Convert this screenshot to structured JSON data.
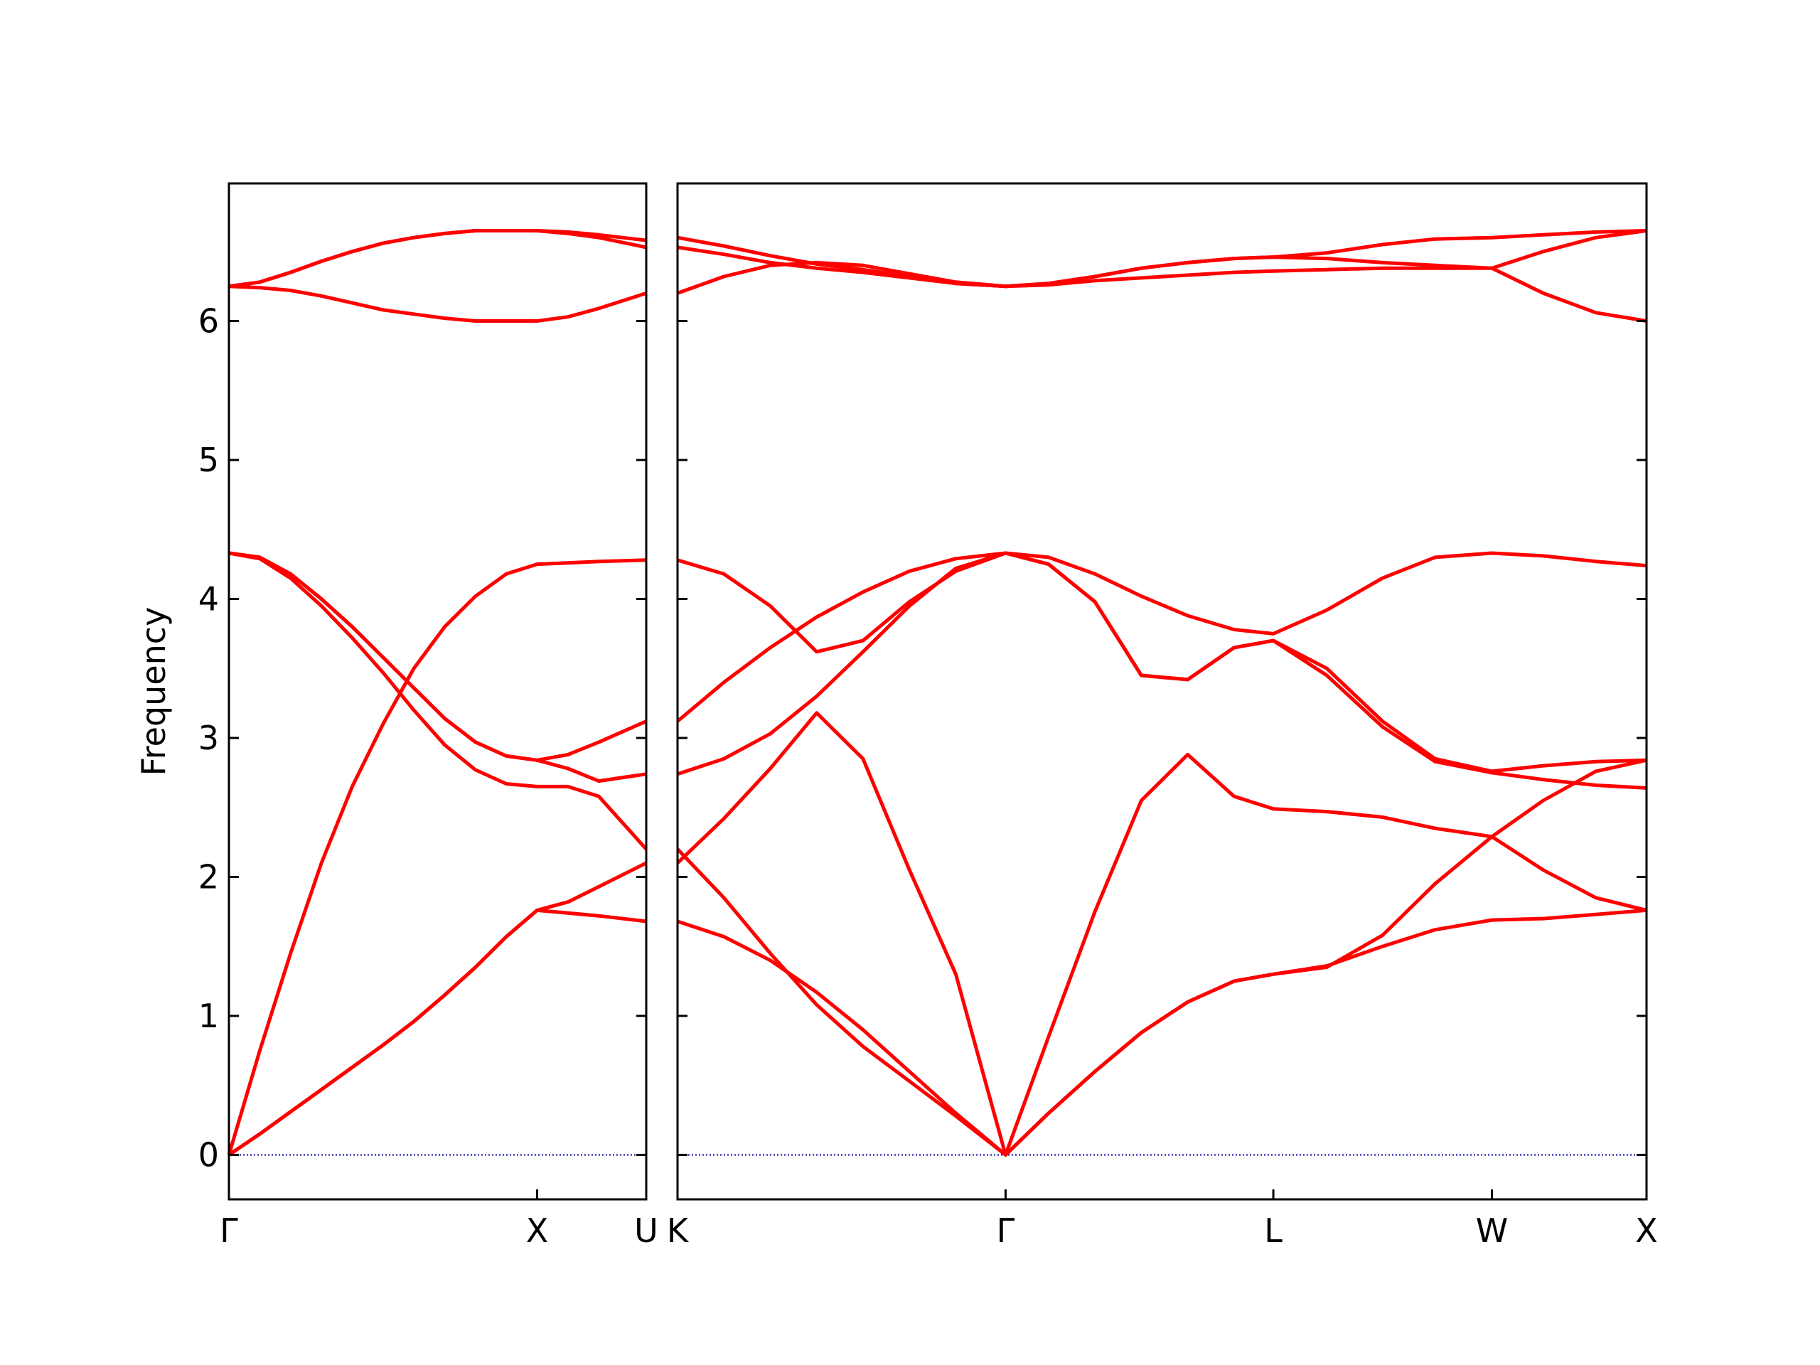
{
  "chart_data": [
    {
      "type": "line",
      "ylabel": "Frequency",
      "x": [
        0,
        0.1,
        0.2,
        0.3,
        0.4,
        0.5,
        0.6,
        0.7,
        0.8,
        0.9,
        1.0,
        1.1,
        1.2,
        1.354
      ],
      "xlim": [
        0,
        1.354
      ],
      "xticks": [
        {
          "value": 0,
          "label": "Γ"
        },
        {
          "value": 1.0,
          "label": "X"
        },
        {
          "value": 1.354,
          "label": "U"
        }
      ],
      "ylim": [
        -0.32,
        6.99
      ],
      "yticks": [
        0,
        1,
        2,
        3,
        4,
        5,
        6
      ],
      "show_ytick_labels": true,
      "hline": {
        "value": 0,
        "color": "#0000aa"
      },
      "series": [
        {
          "color": "#ff0000",
          "values": [
            0,
            0.15,
            0.31,
            0.47,
            0.63,
            0.79,
            0.96,
            1.15,
            1.35,
            1.57,
            1.76,
            1.74,
            1.72,
            1.68
          ]
        },
        {
          "color": "#ff0000",
          "values": [
            0,
            0.15,
            0.31,
            0.47,
            0.63,
            0.79,
            0.96,
            1.15,
            1.35,
            1.57,
            1.76,
            1.82,
            1.93,
            2.1
          ]
        },
        {
          "color": "#ff0000",
          "values": [
            0,
            0.75,
            1.45,
            2.1,
            2.65,
            3.1,
            3.5,
            3.8,
            4.02,
            4.18,
            4.25,
            4.26,
            4.27,
            4.28
          ]
        },
        {
          "color": "#ff0000",
          "values": [
            4.33,
            4.3,
            4.18,
            4.0,
            3.8,
            3.58,
            3.36,
            3.14,
            2.97,
            2.87,
            2.84,
            2.88,
            2.97,
            3.12
          ]
        },
        {
          "color": "#ff0000",
          "values": [
            4.33,
            4.3,
            4.18,
            4.0,
            3.8,
            3.58,
            3.36,
            3.14,
            2.97,
            2.87,
            2.84,
            2.78,
            2.69,
            2.74
          ]
        },
        {
          "color": "#ff0000",
          "values": [
            4.33,
            4.29,
            4.15,
            3.95,
            3.72,
            3.47,
            3.2,
            2.95,
            2.77,
            2.67,
            2.65,
            2.65,
            2.58,
            2.2
          ]
        },
        {
          "color": "#ff0000",
          "values": [
            6.25,
            6.28,
            6.35,
            6.43,
            6.5,
            6.56,
            6.6,
            6.63,
            6.65,
            6.65,
            6.65,
            6.64,
            6.62,
            6.58
          ]
        },
        {
          "color": "#ff0000",
          "values": [
            6.25,
            6.28,
            6.35,
            6.43,
            6.5,
            6.56,
            6.6,
            6.63,
            6.65,
            6.65,
            6.65,
            6.63,
            6.6,
            6.53
          ]
        },
        {
          "color": "#ff0000",
          "values": [
            6.25,
            6.24,
            6.22,
            6.18,
            6.13,
            6.08,
            6.05,
            6.02,
            6.0,
            6.0,
            6.0,
            6.03,
            6.09,
            6.2
          ]
        }
      ]
    },
    {
      "type": "line",
      "x": [
        0,
        0.15,
        0.3,
        0.45,
        0.6,
        0.75,
        0.9,
        1.061,
        1.2,
        1.35,
        1.5,
        1.65,
        1.8,
        1.927,
        2.1,
        2.28,
        2.45,
        2.634,
        2.8,
        2.97,
        3.134
      ],
      "xlim": [
        0,
        3.134
      ],
      "xticks": [
        {
          "value": 0,
          "label": "K"
        },
        {
          "value": 1.061,
          "label": "Γ"
        },
        {
          "value": 1.927,
          "label": "L"
        },
        {
          "value": 2.634,
          "label": "W"
        },
        {
          "value": 3.134,
          "label": "X"
        }
      ],
      "ylim": [
        -0.32,
        6.99
      ],
      "yticks": [
        0,
        1,
        2,
        3,
        4,
        5,
        6
      ],
      "show_ytick_labels": false,
      "hline": {
        "value": 0,
        "color": "#0000aa"
      },
      "series": [
        {
          "color": "#ff0000",
          "values": [
            1.68,
            1.57,
            1.4,
            1.17,
            0.9,
            0.6,
            0.3,
            0,
            0.3,
            0.6,
            0.88,
            1.1,
            1.25,
            1.3,
            1.36,
            1.5,
            1.62,
            1.69,
            1.7,
            1.73,
            1.76
          ]
        },
        {
          "color": "#ff0000",
          "values": [
            2.2,
            1.85,
            1.45,
            1.08,
            0.78,
            0.53,
            0.28,
            0,
            0.3,
            0.6,
            0.88,
            1.1,
            1.25,
            1.3,
            1.35,
            1.58,
            1.95,
            2.29,
            2.55,
            2.76,
            2.84
          ]
        },
        {
          "color": "#ff0000",
          "values": [
            2.1,
            2.42,
            2.78,
            3.18,
            2.85,
            2.05,
            1.3,
            0,
            0.85,
            1.75,
            2.55,
            2.88,
            2.58,
            2.49,
            2.47,
            2.43,
            2.35,
            2.29,
            2.05,
            1.85,
            1.76
          ]
        },
        {
          "color": "#ff0000",
          "values": [
            3.12,
            3.4,
            3.65,
            3.87,
            4.05,
            4.2,
            4.29,
            4.33,
            4.3,
            4.18,
            4.02,
            3.88,
            3.78,
            3.75,
            3.92,
            4.15,
            4.3,
            4.33,
            4.31,
            4.27,
            4.24
          ]
        },
        {
          "color": "#ff0000",
          "values": [
            4.28,
            4.18,
            3.95,
            3.62,
            3.7,
            3.98,
            4.2,
            4.33,
            4.25,
            3.98,
            3.45,
            3.42,
            3.65,
            3.7,
            3.5,
            3.12,
            2.85,
            2.76,
            2.8,
            2.83,
            2.84
          ]
        },
        {
          "color": "#ff0000",
          "values": [
            2.74,
            2.85,
            3.03,
            3.3,
            3.62,
            3.95,
            4.22,
            4.33,
            4.25,
            3.98,
            3.45,
            3.42,
            3.65,
            3.7,
            3.45,
            3.08,
            2.83,
            2.75,
            2.7,
            2.66,
            2.64
          ]
        },
        {
          "color": "#ff0000",
          "values": [
            6.6,
            6.54,
            6.47,
            6.41,
            6.37,
            6.32,
            6.27,
            6.25,
            6.27,
            6.32,
            6.38,
            6.42,
            6.45,
            6.46,
            6.49,
            6.55,
            6.59,
            6.6,
            6.62,
            6.64,
            6.65
          ]
        },
        {
          "color": "#ff0000",
          "values": [
            6.53,
            6.48,
            6.42,
            6.38,
            6.35,
            6.31,
            6.27,
            6.25,
            6.26,
            6.29,
            6.31,
            6.33,
            6.35,
            6.36,
            6.37,
            6.38,
            6.38,
            6.38,
            6.5,
            6.6,
            6.65
          ]
        },
        {
          "color": "#ff0000",
          "values": [
            6.2,
            6.32,
            6.4,
            6.42,
            6.4,
            6.34,
            6.28,
            6.25,
            6.27,
            6.32,
            6.38,
            6.42,
            6.45,
            6.46,
            6.45,
            6.42,
            6.4,
            6.38,
            6.2,
            6.06,
            6.0
          ]
        }
      ]
    }
  ]
}
